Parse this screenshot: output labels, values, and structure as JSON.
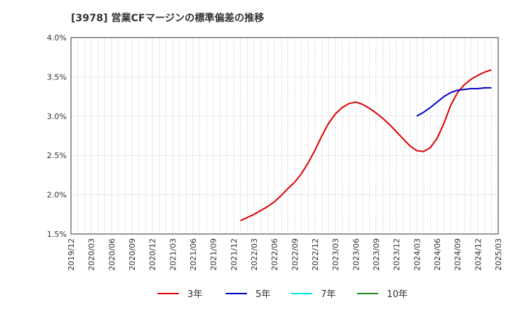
{
  "chart_data": {
    "type": "line",
    "title": "[3978]  営業CFマージンの標準偏差の推移",
    "xlabel": "",
    "ylabel": "",
    "ylim": [
      0.015,
      0.04
    ],
    "y_ticks": [
      0.015,
      0.02,
      0.025,
      0.03,
      0.035,
      0.04
    ],
    "y_tick_labels": [
      "1.5%",
      "2.0%",
      "2.5%",
      "3.0%",
      "3.5%",
      "4.0%"
    ],
    "x_ticks": [
      "2019/12",
      "2020/03",
      "2020/06",
      "2020/09",
      "2020/12",
      "2021/03",
      "2021/06",
      "2021/09",
      "2021/12",
      "2022/03",
      "2022/06",
      "2022/09",
      "2022/12",
      "2023/03",
      "2023/06",
      "2023/09",
      "2023/12",
      "2024/03",
      "2024/06",
      "2024/09",
      "2024/12",
      "2025/03"
    ],
    "grid": true,
    "legend_position": "bottom",
    "series": [
      {
        "name": "3年",
        "color": "#dd0000",
        "points": [
          [
            "2022/01",
            0.0167
          ],
          [
            "2022/02",
            0.0171
          ],
          [
            "2022/03",
            0.0175
          ],
          [
            "2022/04",
            0.018
          ],
          [
            "2022/05",
            0.0185
          ],
          [
            "2022/06",
            0.0191
          ],
          [
            "2022/07",
            0.0199
          ],
          [
            "2022/08",
            0.0208
          ],
          [
            "2022/09",
            0.0216
          ],
          [
            "2022/10",
            0.0227
          ],
          [
            "2022/11",
            0.0241
          ],
          [
            "2022/12",
            0.0257
          ],
          [
            "2023/01",
            0.0275
          ],
          [
            "2023/02",
            0.0291
          ],
          [
            "2023/03",
            0.0303
          ],
          [
            "2023/04",
            0.0311
          ],
          [
            "2023/05",
            0.0316
          ],
          [
            "2023/06",
            0.0318
          ],
          [
            "2023/07",
            0.0315
          ],
          [
            "2023/08",
            0.031
          ],
          [
            "2023/09",
            0.0304
          ],
          [
            "2023/10",
            0.0297
          ],
          [
            "2023/11",
            0.0289
          ],
          [
            "2023/12",
            0.028
          ],
          [
            "2024/01",
            0.0271
          ],
          [
            "2024/02",
            0.0262
          ],
          [
            "2024/03",
            0.0256
          ],
          [
            "2024/04",
            0.0255
          ],
          [
            "2024/05",
            0.026
          ],
          [
            "2024/06",
            0.0272
          ],
          [
            "2024/07",
            0.0291
          ],
          [
            "2024/08",
            0.0314
          ],
          [
            "2024/09",
            0.033
          ],
          [
            "2024/10",
            0.034
          ],
          [
            "2024/11",
            0.0347
          ],
          [
            "2024/12",
            0.0352
          ],
          [
            "2025/01",
            0.0356
          ],
          [
            "2025/02",
            0.0359
          ]
        ]
      },
      {
        "name": "5年",
        "color": "#0000cc",
        "points": [
          [
            "2024/03",
            0.03
          ],
          [
            "2024/04",
            0.0305
          ],
          [
            "2024/05",
            0.0311
          ],
          [
            "2024/06",
            0.0318
          ],
          [
            "2024/07",
            0.0325
          ],
          [
            "2024/08",
            0.033
          ],
          [
            "2024/09",
            0.0333
          ],
          [
            "2024/10",
            0.0334
          ],
          [
            "2024/11",
            0.0335
          ],
          [
            "2024/12",
            0.0335
          ],
          [
            "2025/01",
            0.0336
          ],
          [
            "2025/02",
            0.0336
          ]
        ]
      },
      {
        "name": "7年",
        "color": "#00e5ee",
        "points": []
      },
      {
        "name": "10年",
        "color": "#228b22",
        "points": []
      }
    ]
  }
}
